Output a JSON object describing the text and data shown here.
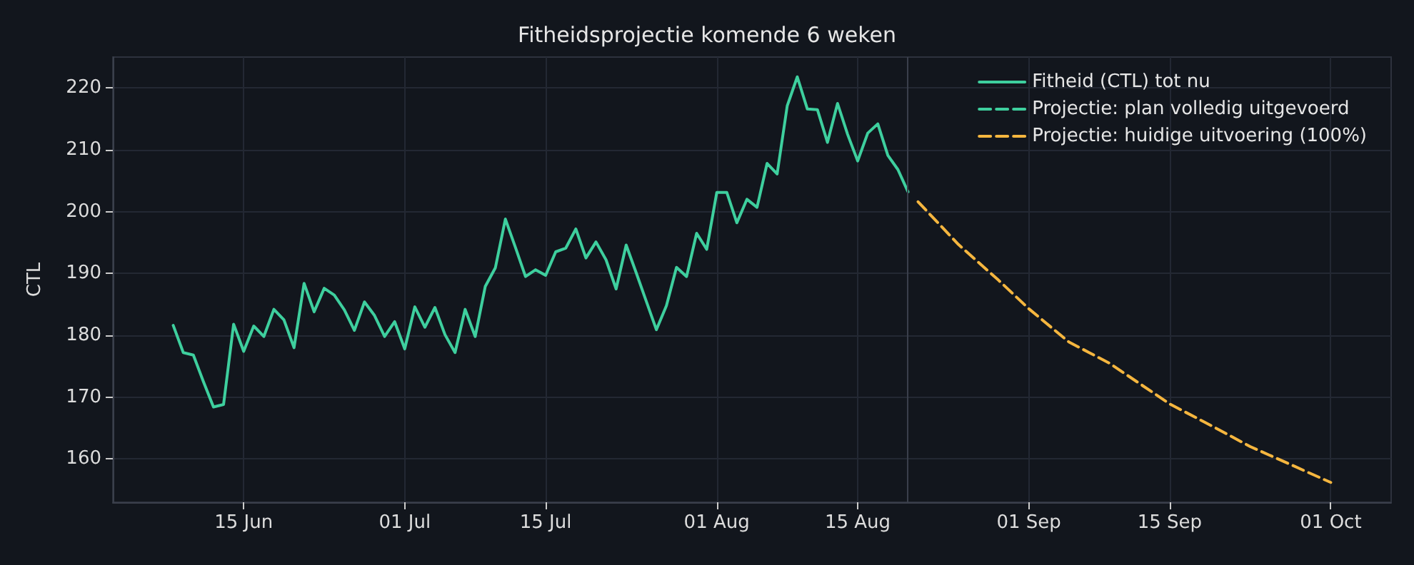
{
  "chart_data": {
    "type": "line",
    "title": "Fitheidsprojectie komende 6 weken",
    "ylabel": "CTL",
    "xlim": [
      "--06-02",
      "--10-07"
    ],
    "xticks": [
      {
        "value": "--06-15",
        "label": "15 Jun"
      },
      {
        "value": "--07-01",
        "label": "01 Jul"
      },
      {
        "value": "--07-15",
        "label": "15 Jul"
      },
      {
        "value": "--08-01",
        "label": "01 Aug"
      },
      {
        "value": "--08-15",
        "label": "15 Aug"
      },
      {
        "value": "--09-01",
        "label": "01 Sep"
      },
      {
        "value": "--09-15",
        "label": "15 Sep"
      },
      {
        "value": "--10-01",
        "label": "01 Oct"
      }
    ],
    "ylim": [
      153,
      225
    ],
    "yticks": [
      160,
      170,
      180,
      190,
      200,
      210,
      220
    ],
    "grid": true,
    "legend": "top right",
    "marker": "none",
    "ref_lines": [
      {
        "axis": "x",
        "value": "--08-20",
        "label": null,
        "color": "#3a3f4b"
      }
    ],
    "series": [
      {
        "name": "Fitheid (CTL) tot nu",
        "color": "#3ecf9e",
        "line_style": "solid",
        "x": [
          "--06-08",
          "--06-09",
          "--06-10",
          "--06-11",
          "--06-12",
          "--06-13",
          "--06-14",
          "--06-15",
          "--06-16",
          "--06-17",
          "--06-18",
          "--06-19",
          "--06-20",
          "--06-21",
          "--06-22",
          "--06-23",
          "--06-24",
          "--06-25",
          "--06-26",
          "--06-27",
          "--06-28",
          "--06-29",
          "--06-30",
          "--07-01",
          "--07-02",
          "--07-03",
          "--07-04",
          "--07-05",
          "--07-06",
          "--07-07",
          "--07-08",
          "--07-09",
          "--07-10",
          "--07-11",
          "--07-12",
          "--07-13",
          "--07-14",
          "--07-15",
          "--07-16",
          "--07-17",
          "--07-18",
          "--07-19",
          "--07-20",
          "--07-21",
          "--07-22",
          "--07-23",
          "--07-24",
          "--07-25",
          "--07-26",
          "--07-27",
          "--07-28",
          "--07-29",
          "--07-30",
          "--07-31",
          "--08-01",
          "--08-02",
          "--08-03",
          "--08-04",
          "--08-05",
          "--08-06",
          "--08-07",
          "--08-08",
          "--08-09",
          "--08-10",
          "--08-11",
          "--08-12",
          "--08-13",
          "--08-14",
          "--08-15",
          "--08-16",
          "--08-17",
          "--08-18",
          "--08-19",
          "--08-20"
        ],
        "values": [
          181.6,
          177.2,
          176.8,
          172.5,
          168.4,
          168.8,
          181.8,
          177.4,
          181.5,
          179.8,
          184.2,
          182.5,
          178.0,
          188.4,
          183.8,
          187.6,
          186.5,
          184.1,
          180.8,
          185.4,
          183.2,
          179.8,
          182.2,
          177.8,
          184.6,
          181.3,
          184.5,
          180.1,
          177.2,
          184.2,
          179.8,
          187.9,
          190.9,
          198.8,
          194.2,
          189.5,
          190.6,
          189.7,
          193.5,
          194.1,
          197.2,
          192.5,
          195.1,
          192.2,
          187.5,
          194.6,
          190.1,
          185.5,
          180.9,
          184.8,
          191.0,
          189.5,
          196.5,
          193.9,
          203.1,
          203.1,
          198.2,
          202.0,
          200.7,
          207.8,
          206.1,
          217.1,
          221.8,
          216.6,
          216.5,
          211.2,
          217.5,
          212.5,
          208.2,
          212.7,
          214.2,
          209.1,
          206.8,
          203.2
        ]
      },
      {
        "name": "Projectie: plan volledig uitgevoerd",
        "color": "#3ecf9e",
        "line_style": "dashed"
      },
      {
        "name": "Projectie: huidige uitvoering (100%)",
        "color": "#f5b63f",
        "line_style": "dashed",
        "x": [
          "--08-21",
          "--08-25",
          "--08-29",
          "--09-01",
          "--09-05",
          "--09-09",
          "--09-15",
          "--09-19",
          "--09-23",
          "--09-27",
          "--10-01"
        ],
        "values": [
          201.6,
          194.7,
          188.9,
          184.3,
          178.9,
          175.5,
          168.9,
          165.5,
          162.0,
          159.1,
          156.2
        ]
      }
    ]
  }
}
